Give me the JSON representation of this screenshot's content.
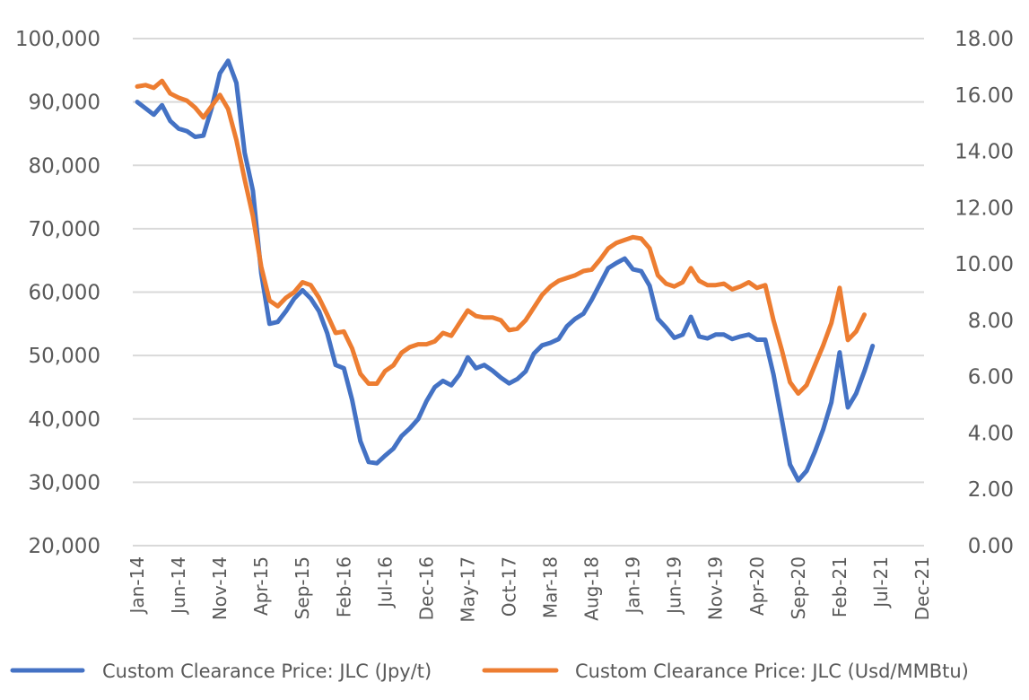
{
  "chart_data": {
    "type": "line",
    "title": "",
    "xlabel": "",
    "ylabel": "",
    "y2label": "",
    "grid": true,
    "legend_position": "bottom",
    "x_tick_labels": [
      "Jan-14",
      "Jun-14",
      "Nov-14",
      "Apr-15",
      "Sep-15",
      "Feb-16",
      "Jul-16",
      "Dec-16",
      "May-17",
      "Oct-17",
      "Mar-18",
      "Aug-18",
      "Jan-19",
      "Jun-19",
      "Nov-19",
      "Apr-20",
      "Sep-20",
      "Feb-21",
      "Jul-21",
      "Dec-21"
    ],
    "x_start": "Jan-14",
    "x_end": "Dec-21",
    "x_unit": "month",
    "ylim": [
      20000,
      100000
    ],
    "y_ticks": [
      20000,
      30000,
      40000,
      50000,
      60000,
      70000,
      80000,
      90000,
      100000
    ],
    "y_tick_labels": [
      "20,000",
      "30,000",
      "40,000",
      "50,000",
      "60,000",
      "70,000",
      "80,000",
      "90,000",
      "100,000"
    ],
    "y2lim": [
      0,
      18
    ],
    "y2_ticks": [
      0,
      2,
      4,
      6,
      8,
      10,
      12,
      14,
      16,
      18
    ],
    "y2_tick_labels": [
      "0.00",
      "2.00",
      "4.00",
      "6.00",
      "8.00",
      "10.00",
      "12.00",
      "14.00",
      "16.00",
      "18.00"
    ],
    "series": [
      {
        "name": "Custom Clearance Price: JLC (Jpy/t)",
        "axis": "left",
        "color": "#4472C4",
        "start": "Jan-14",
        "values": [
          90000,
          89000,
          88000,
          89500,
          87000,
          85800,
          85400,
          84500,
          84700,
          89000,
          94500,
          96500,
          93000,
          82000,
          76000,
          63000,
          55000,
          55300,
          57000,
          59000,
          60300,
          59000,
          57000,
          53500,
          48500,
          48000,
          43000,
          36500,
          33200,
          33000,
          34200,
          35300,
          37300,
          38500,
          40000,
          42800,
          45000,
          46000,
          45300,
          47000,
          49700,
          48000,
          48500,
          47600,
          46500,
          45600,
          46300,
          47500,
          50300,
          51600,
          52000,
          52600,
          54600,
          55800,
          56600,
          58800,
          61300,
          63800,
          64600,
          65300,
          63600,
          63300,
          61000,
          55800,
          54400,
          52800,
          53300,
          56100,
          53000,
          52700,
          53300,
          53300,
          52600,
          53000,
          53300,
          52500,
          52500,
          47000,
          40000,
          32800,
          30300,
          31800,
          34800,
          38300,
          42600,
          50500,
          41800,
          44000,
          47500,
          51500
        ]
      },
      {
        "name": "Custom Clearance Price: JLC (Usd/MMBtu)",
        "axis": "right",
        "color": "#ED7D31",
        "start": "Jan-14",
        "values": [
          16.3,
          16.35,
          16.25,
          16.5,
          16.05,
          15.9,
          15.8,
          15.55,
          15.2,
          15.6,
          16.0,
          15.5,
          14.4,
          13.0,
          11.7,
          9.9,
          8.7,
          8.5,
          8.8,
          9.0,
          9.35,
          9.25,
          8.8,
          8.2,
          7.55,
          7.6,
          7.0,
          6.1,
          5.75,
          5.75,
          6.2,
          6.4,
          6.85,
          7.05,
          7.15,
          7.15,
          7.25,
          7.55,
          7.45,
          7.9,
          8.35,
          8.15,
          8.1,
          8.1,
          8.0,
          7.65,
          7.7,
          8.0,
          8.45,
          8.9,
          9.2,
          9.4,
          9.5,
          9.6,
          9.75,
          9.8,
          10.15,
          10.55,
          10.75,
          10.85,
          10.95,
          10.9,
          10.55,
          9.6,
          9.3,
          9.2,
          9.35,
          9.85,
          9.4,
          9.25,
          9.25,
          9.3,
          9.1,
          9.2,
          9.35,
          9.15,
          9.25,
          8.0,
          6.95,
          5.8,
          5.4,
          5.7,
          6.4,
          7.1,
          7.9,
          9.15,
          7.3,
          7.6,
          8.2
        ]
      }
    ]
  }
}
